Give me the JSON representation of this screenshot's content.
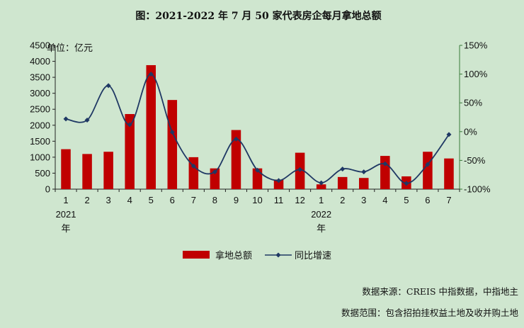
{
  "chart_data": {
    "type": "bar",
    "title": "图：2021-2022 年 7 月 50 家代表房企每月拿地总额",
    "unit_label": "单位：亿元",
    "categories": [
      "1",
      "2",
      "3",
      "4",
      "5",
      "6",
      "7",
      "8",
      "9",
      "10",
      "11",
      "12",
      "1",
      "2",
      "3",
      "4",
      "5",
      "6",
      "7"
    ],
    "year_labels": [
      {
        "year": "2021",
        "suffix": "年",
        "index": 0
      },
      {
        "year": "2022",
        "suffix": "年",
        "index": 12
      }
    ],
    "series": [
      {
        "name": "拿地总额",
        "type": "bar",
        "axis": "left",
        "color": "#c00000",
        "values": [
          1250,
          1100,
          1170,
          2350,
          3880,
          2790,
          1000,
          650,
          1850,
          650,
          300,
          1140,
          150,
          380,
          350,
          1040,
          400,
          1170,
          960
        ]
      },
      {
        "name": "同比增速",
        "type": "line",
        "axis": "right",
        "color": "#1f3864",
        "values": [
          22,
          20,
          80,
          12,
          100,
          -1,
          -60,
          -70,
          -13,
          -67,
          -85,
          -66,
          -89,
          -65,
          -70,
          -56,
          -90,
          -57,
          -5
        ]
      }
    ],
    "y_left": {
      "min": 0,
      "max": 4500,
      "step": 500
    },
    "y_right": {
      "min": -100,
      "max": 150,
      "step": 50,
      "format": "percent"
    },
    "legend_position": "bottom",
    "grid": false
  },
  "footnotes": {
    "source": "数据来源：CREIS 中指数据，中指地主",
    "scope": "数据范围：包含招拍挂权益土地及收并购土地"
  }
}
